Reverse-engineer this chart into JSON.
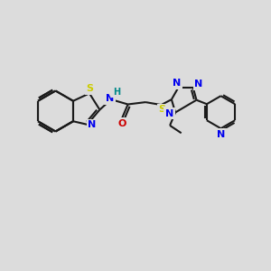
{
  "bg": "#dcdcdc",
  "bond_color": "#1a1a1a",
  "S_color": "#cccc00",
  "N_color": "#0000ee",
  "O_color": "#cc0000",
  "H_color": "#008888",
  "font_size": 8.0,
  "lw": 1.5,
  "xlim": [
    0,
    10
  ],
  "ylim": [
    0,
    10
  ]
}
